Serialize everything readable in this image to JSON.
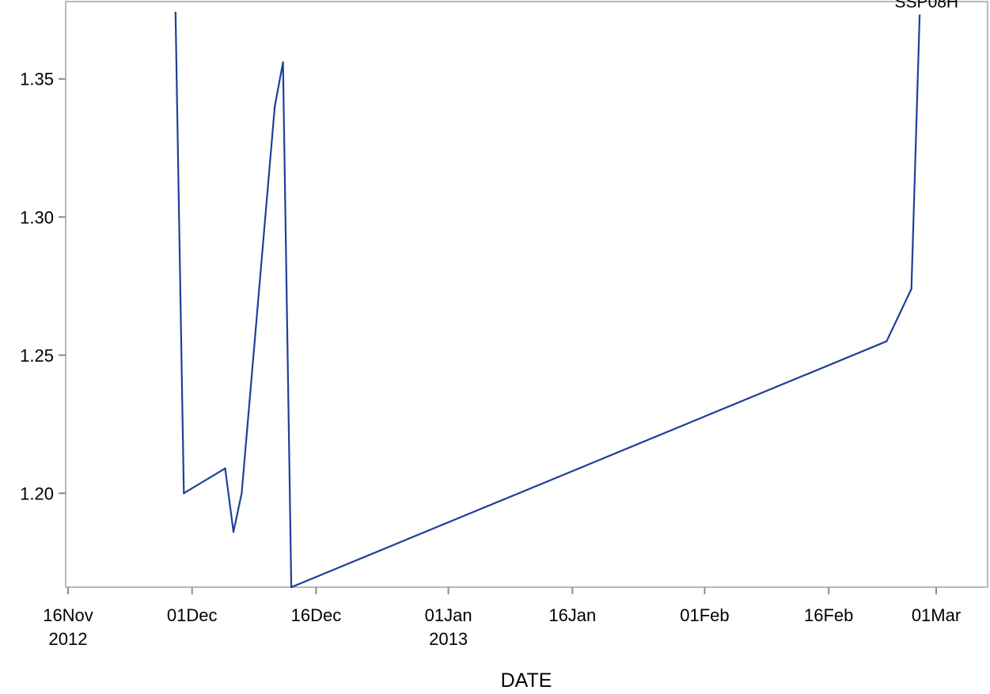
{
  "chart_data": {
    "type": "line",
    "title": "",
    "xlabel": "DATE",
    "ylabel": "",
    "grid": false,
    "legend": "none",
    "xlim": [
      "2012-11-16",
      "2013-03-06"
    ],
    "ylim": [
      1.166,
      1.378
    ],
    "x_ticks": [
      {
        "date": "2012-11-16",
        "label": "16Nov",
        "sublabel": "2012"
      },
      {
        "date": "2012-12-01",
        "label": "01Dec",
        "sublabel": ""
      },
      {
        "date": "2012-12-16",
        "label": "16Dec",
        "sublabel": ""
      },
      {
        "date": "2013-01-01",
        "label": "01Jan",
        "sublabel": "2013"
      },
      {
        "date": "2013-01-16",
        "label": "16Jan",
        "sublabel": ""
      },
      {
        "date": "2013-02-01",
        "label": "01Feb",
        "sublabel": ""
      },
      {
        "date": "2013-02-16",
        "label": "16Feb",
        "sublabel": ""
      },
      {
        "date": "2013-03-01",
        "label": "01Mar",
        "sublabel": ""
      }
    ],
    "y_ticks": [
      {
        "value": 1.2,
        "label": "1.20"
      },
      {
        "value": 1.25,
        "label": "1.25"
      },
      {
        "value": 1.3,
        "label": "1.30"
      },
      {
        "value": 1.35,
        "label": "1.35"
      }
    ],
    "series": [
      {
        "name": "SSP08H",
        "color": "#1f3f9a",
        "points": [
          {
            "x": "2012-11-29",
            "y": 1.374
          },
          {
            "x": "2012-11-30",
            "y": 1.2
          },
          {
            "x": "2012-12-05",
            "y": 1.209
          },
          {
            "x": "2012-12-06",
            "y": 1.186
          },
          {
            "x": "2012-12-07",
            "y": 1.2
          },
          {
            "x": "2012-12-11",
            "y": 1.34
          },
          {
            "x": "2012-12-12",
            "y": 1.356
          },
          {
            "x": "2012-12-13",
            "y": 1.166
          },
          {
            "x": "2013-02-23",
            "y": 1.255
          },
          {
            "x": "2013-02-26",
            "y": 1.274
          },
          {
            "x": "2013-02-27",
            "y": 1.373
          }
        ]
      }
    ]
  }
}
